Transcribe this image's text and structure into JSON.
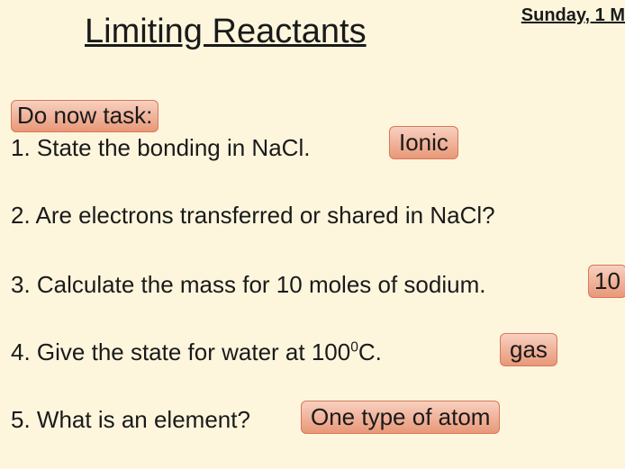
{
  "date": "Sunday, 1 M",
  "title": "Limiting Reactants",
  "taskLabel": "Do now task:",
  "questions": {
    "q1": "1. State the bonding in NaCl.",
    "q2": "2. Are electrons transferred or shared in NaCl?",
    "q3": "3. Calculate the mass for 10 moles of sodium.",
    "q4_pre": "4. Give the state for water at 100",
    "q4_sup": "0",
    "q4_post": "C.",
    "q5": "5. What is an element?"
  },
  "answers": {
    "a1": "Ionic",
    "a3": "10",
    "a4": "gas",
    "a5": "One type of atom"
  },
  "colors": {
    "background": "#fdf6dd",
    "answerBg": "#f0b098",
    "text": "#1a1a1a"
  }
}
